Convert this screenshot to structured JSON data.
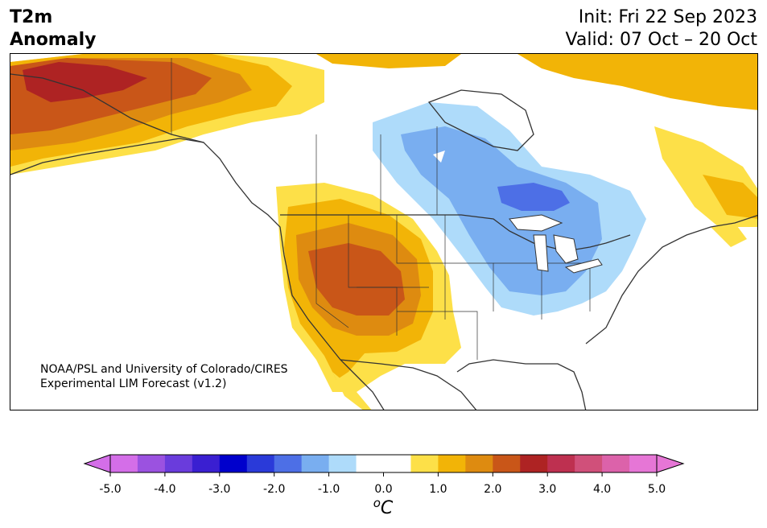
{
  "title": {
    "left_line1": "T2m",
    "left_line2": "Anomaly",
    "right_line1": "Init: Fri 22 Sep 2023",
    "right_line2": "Valid: 07 Oct – 20 Oct"
  },
  "credit": {
    "line1": "NOAA/PSL and University of Colorado/CIRES",
    "line2": "Experimental LIM Forecast (v1.2)"
  },
  "colorbar": {
    "unit": "oC",
    "unit_base": "C",
    "unit_super": "o",
    "ticks": [
      "-5.0",
      "-4.0",
      "-3.0",
      "-2.0",
      "-1.0",
      "0.0",
      "1.0",
      "2.0",
      "3.0",
      "4.0",
      "5.0"
    ],
    "colors": [
      "#d46ee8",
      "#9b52e0",
      "#6a3cdc",
      "#3a1fd1",
      "#0000cc",
      "#2a3ad9",
      "#4d6fe6",
      "#79aef0",
      "#aedbfa",
      "#ffffff",
      "#ffffff",
      "#fde048",
      "#f2b407",
      "#de8b10",
      "#c95618",
      "#ae2323",
      "#be3050",
      "#d0507a",
      "#dc62aa",
      "#e676d6"
    ],
    "min_color": "#d46ee8",
    "max_color": "#e676d6"
  },
  "map": {
    "region": "North America",
    "fields": {
      "warm_1": "#fde048",
      "warm_2": "#f2b407",
      "warm_3": "#de8b10",
      "warm_4": "#c95618",
      "warm_5": "#ae2323",
      "cool_1": "#aedbfa",
      "cool_2": "#79aef0",
      "cool_3": "#4d6fe6"
    }
  }
}
